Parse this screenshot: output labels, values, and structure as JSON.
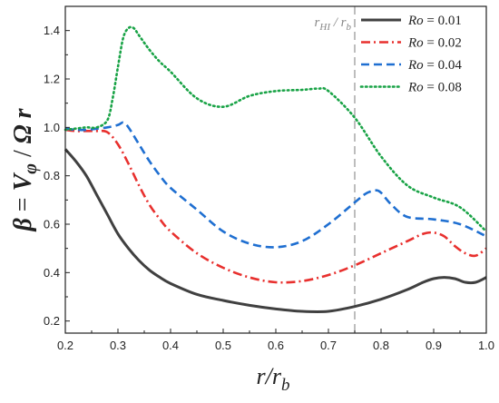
{
  "chart_data": {
    "type": "line",
    "xlabel": "r/r_b",
    "ylabel": "β = V_φ / Ω r",
    "xlim": [
      0.2,
      1.0
    ],
    "ylim": [
      0.15,
      1.5
    ],
    "xticks": [
      0.2,
      0.3,
      0.4,
      0.5,
      0.6,
      0.7,
      0.8,
      0.9,
      1.0
    ],
    "xtick_labels": [
      "0.2",
      "0.3",
      "0.4",
      "0.5",
      "0.6",
      "0.7",
      "0.8",
      "0.9",
      "1.0"
    ],
    "yticks": [
      0.2,
      0.4,
      0.6,
      0.8,
      1.0,
      1.2,
      1.4
    ],
    "ytick_labels": [
      "0.2",
      "0.4",
      "0.6",
      "0.8",
      "1.0",
      "1.2",
      "1.4"
    ],
    "grid": false,
    "legend_position": "top-right",
    "annotation": {
      "text": "r_HI / r_b",
      "x": 0.75
    },
    "series": [
      {
        "name": "Ro = 0.01",
        "legend_prefix": "Ro",
        "legend_value": "= 0.01",
        "color": "#404040",
        "style": "solid",
        "x": [
          0.2,
          0.22,
          0.24,
          0.26,
          0.28,
          0.3,
          0.32,
          0.34,
          0.36,
          0.38,
          0.4,
          0.45,
          0.5,
          0.55,
          0.6,
          0.65,
          0.7,
          0.75,
          0.8,
          0.85,
          0.88,
          0.9,
          0.92,
          0.94,
          0.96,
          0.98,
          1.0
        ],
        "y": [
          0.91,
          0.86,
          0.8,
          0.72,
          0.64,
          0.56,
          0.5,
          0.45,
          0.41,
          0.38,
          0.355,
          0.31,
          0.285,
          0.265,
          0.25,
          0.24,
          0.24,
          0.26,
          0.29,
          0.33,
          0.36,
          0.375,
          0.38,
          0.375,
          0.36,
          0.36,
          0.38
        ]
      },
      {
        "name": "Ro = 0.02",
        "legend_prefix": "Ro",
        "legend_value": "= 0.02",
        "color": "#e8302e",
        "style": "dashdot",
        "x": [
          0.2,
          0.22,
          0.24,
          0.26,
          0.28,
          0.3,
          0.32,
          0.34,
          0.36,
          0.38,
          0.4,
          0.45,
          0.5,
          0.55,
          0.6,
          0.65,
          0.7,
          0.75,
          0.8,
          0.85,
          0.88,
          0.9,
          0.92,
          0.94,
          0.96,
          0.98,
          1.0
        ],
        "y": [
          0.99,
          0.985,
          0.985,
          0.985,
          0.98,
          0.93,
          0.85,
          0.76,
          0.68,
          0.62,
          0.57,
          0.48,
          0.42,
          0.38,
          0.36,
          0.365,
          0.39,
          0.43,
          0.48,
          0.53,
          0.56,
          0.565,
          0.55,
          0.51,
          0.48,
          0.47,
          0.5
        ]
      },
      {
        "name": "Ro = 0.04",
        "legend_prefix": "Ro",
        "legend_value": "= 0.04",
        "color": "#1f6fd1",
        "style": "dashed",
        "x": [
          0.2,
          0.22,
          0.24,
          0.26,
          0.28,
          0.3,
          0.31,
          0.32,
          0.34,
          0.36,
          0.38,
          0.4,
          0.45,
          0.5,
          0.55,
          0.6,
          0.65,
          0.7,
          0.75,
          0.77,
          0.78,
          0.79,
          0.8,
          0.82,
          0.85,
          0.9,
          0.95,
          1.0
        ],
        "y": [
          0.995,
          0.99,
          0.99,
          0.995,
          1.0,
          1.01,
          1.02,
          1.0,
          0.93,
          0.86,
          0.8,
          0.75,
          0.66,
          0.57,
          0.52,
          0.505,
          0.53,
          0.6,
          0.69,
          0.725,
          0.735,
          0.74,
          0.73,
          0.68,
          0.63,
          0.62,
          0.6,
          0.55
        ]
      },
      {
        "name": "Ro = 0.08",
        "legend_prefix": "Ro",
        "legend_value": "= 0.08",
        "color": "#19a346",
        "style": "dotted",
        "x": [
          0.2,
          0.22,
          0.24,
          0.26,
          0.28,
          0.29,
          0.3,
          0.31,
          0.32,
          0.33,
          0.34,
          0.36,
          0.38,
          0.4,
          0.45,
          0.5,
          0.55,
          0.6,
          0.65,
          0.68,
          0.7,
          0.75,
          0.8,
          0.85,
          0.9,
          0.95,
          1.0
        ],
        "y": [
          0.99,
          0.995,
          1.0,
          1.0,
          1.03,
          1.12,
          1.25,
          1.37,
          1.41,
          1.41,
          1.38,
          1.32,
          1.27,
          1.23,
          1.12,
          1.085,
          1.13,
          1.15,
          1.155,
          1.16,
          1.15,
          1.04,
          0.88,
          0.76,
          0.71,
          0.67,
          0.57
        ]
      }
    ]
  }
}
